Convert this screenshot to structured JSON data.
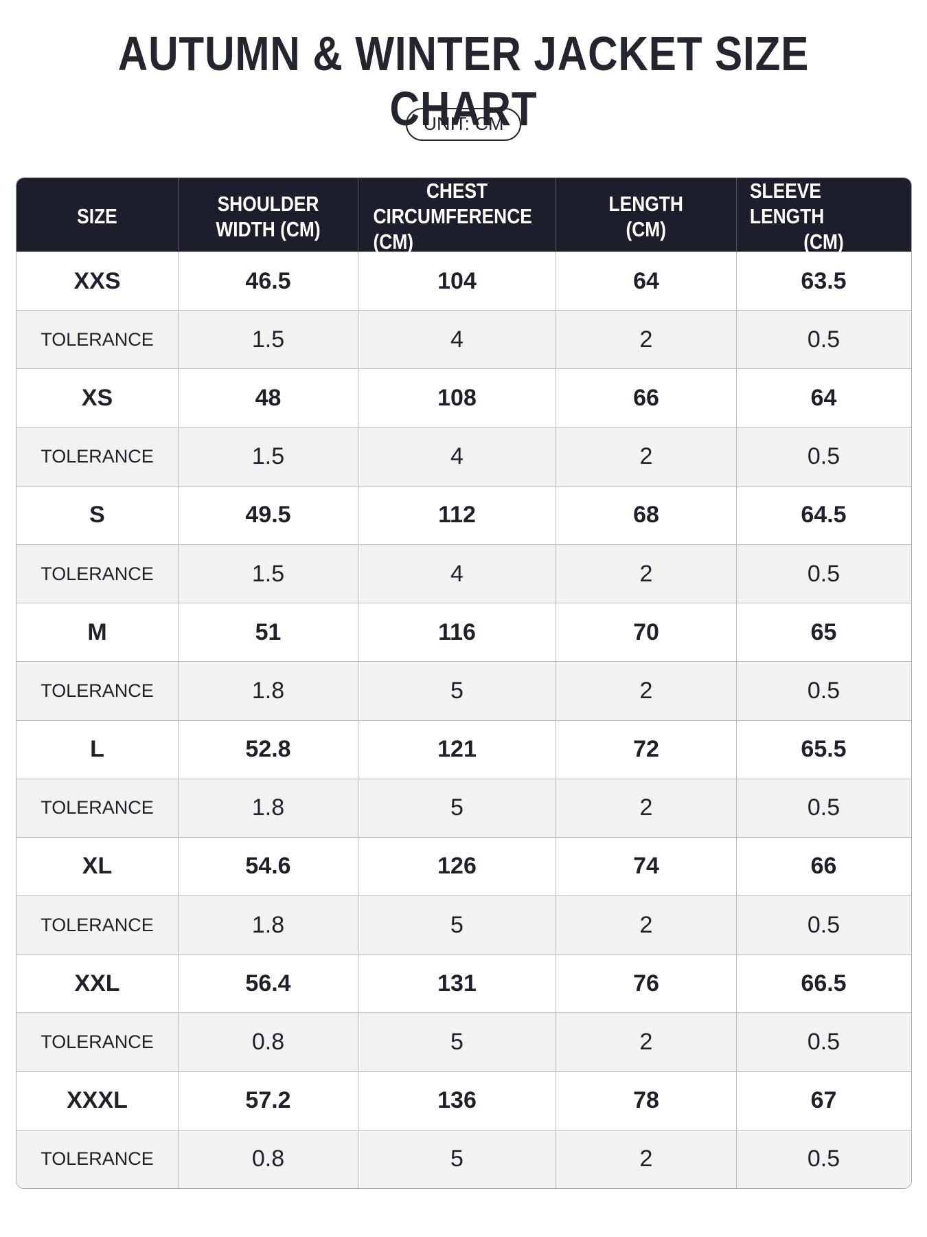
{
  "header": {
    "title": "AUTUMN & WINTER JACKET SIZE CHART",
    "unit": "UNIT: CM"
  },
  "table": {
    "headers": [
      [
        "SIZE"
      ],
      [
        "SHOULDER",
        "WIDTH (CM)"
      ],
      [
        "CHEST",
        "CIRCUMFERENCE (CM)"
      ],
      [
        "LENGTH",
        "(CM)"
      ],
      [
        "SLEEVE LENGTH",
        "(CM)"
      ]
    ],
    "rows": [
      [
        "XXS",
        "46.5",
        "104",
        "64",
        "63.5"
      ],
      [
        "TOLERANCE",
        "1.5",
        "4",
        "2",
        "0.5"
      ],
      [
        "XS",
        "48",
        "108",
        "66",
        "64"
      ],
      [
        "TOLERANCE",
        "1.5",
        "4",
        "2",
        "0.5"
      ],
      [
        "S",
        "49.5",
        "112",
        "68",
        "64.5"
      ],
      [
        "TOLERANCE",
        "1.5",
        "4",
        "2",
        "0.5"
      ],
      [
        "M",
        "51",
        "116",
        "70",
        "65"
      ],
      [
        "TOLERANCE",
        "1.8",
        "5",
        "2",
        "0.5"
      ],
      [
        "L",
        "52.8",
        "121",
        "72",
        "65.5"
      ],
      [
        "TOLERANCE",
        "1.8",
        "5",
        "2",
        "0.5"
      ],
      [
        "XL",
        "54.6",
        "126",
        "74",
        "66"
      ],
      [
        "TOLERANCE",
        "1.8",
        "5",
        "2",
        "0.5"
      ],
      [
        "XXL",
        "56.4",
        "131",
        "76",
        "66.5"
      ],
      [
        "TOLERANCE",
        "0.8",
        "5",
        "2",
        "0.5"
      ],
      [
        "XXXL",
        "57.2",
        "136",
        "78",
        "67"
      ],
      [
        "TOLERANCE",
        "0.8",
        "5",
        "2",
        "0.5"
      ]
    ]
  }
}
